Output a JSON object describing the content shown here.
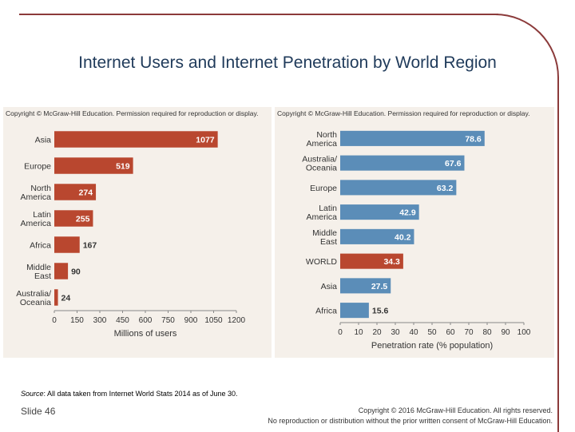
{
  "slide": {
    "title": "Internet Users and Internet Penetration by World Region",
    "source_label": "Source",
    "source_text": ": All data taken from Internet World Stats 2014 as of June 30.",
    "slide_number": "Slide 46",
    "footer_line1": "Copyright © 2016 McGraw-Hill Education. All rights reserved.",
    "footer_line2": "No reproduction or distribution without the prior written consent of McGraw-Hill Education.",
    "colors": {
      "frame": "#8b3a3a",
      "title": "#1f3a5a",
      "chart_bg": "#f5f0ea"
    }
  },
  "chart_data": [
    {
      "type": "bar",
      "orientation": "horizontal",
      "copyright": "Copyright © McGraw-Hill Education. Permission required for reproduction or display.",
      "categories": [
        "Asia",
        "Europe",
        "North America",
        "Latin America",
        "Africa",
        "Middle East",
        "Australia/ Oceania"
      ],
      "values": [
        1077,
        519,
        274,
        255,
        167,
        90,
        24
      ],
      "xlabel": "Millions of users",
      "xlim": [
        0,
        1200
      ],
      "xticks": [
        0,
        150,
        300,
        450,
        600,
        750,
        900,
        1050,
        1200
      ],
      "color": "#b9472f",
      "grid": false
    },
    {
      "type": "bar",
      "orientation": "horizontal",
      "copyright": "Copyright © McGraw-Hill Education. Permission required for reproduction or display.",
      "categories": [
        "North America",
        "Australia/ Oceania",
        "Europe",
        "Latin America",
        "Middle East",
        "WORLD",
        "Asia",
        "Africa"
      ],
      "values": [
        78.6,
        67.6,
        63.2,
        42.9,
        40.2,
        34.3,
        27.5,
        15.6
      ],
      "highlight": "WORLD",
      "xlabel": "Penetration rate (% population)",
      "xlim": [
        0,
        100
      ],
      "xticks": [
        0,
        10,
        20,
        30,
        40,
        50,
        60,
        70,
        80,
        90,
        100
      ],
      "color": "#5b8db8",
      "highlight_color": "#b9472f",
      "grid": false
    }
  ]
}
